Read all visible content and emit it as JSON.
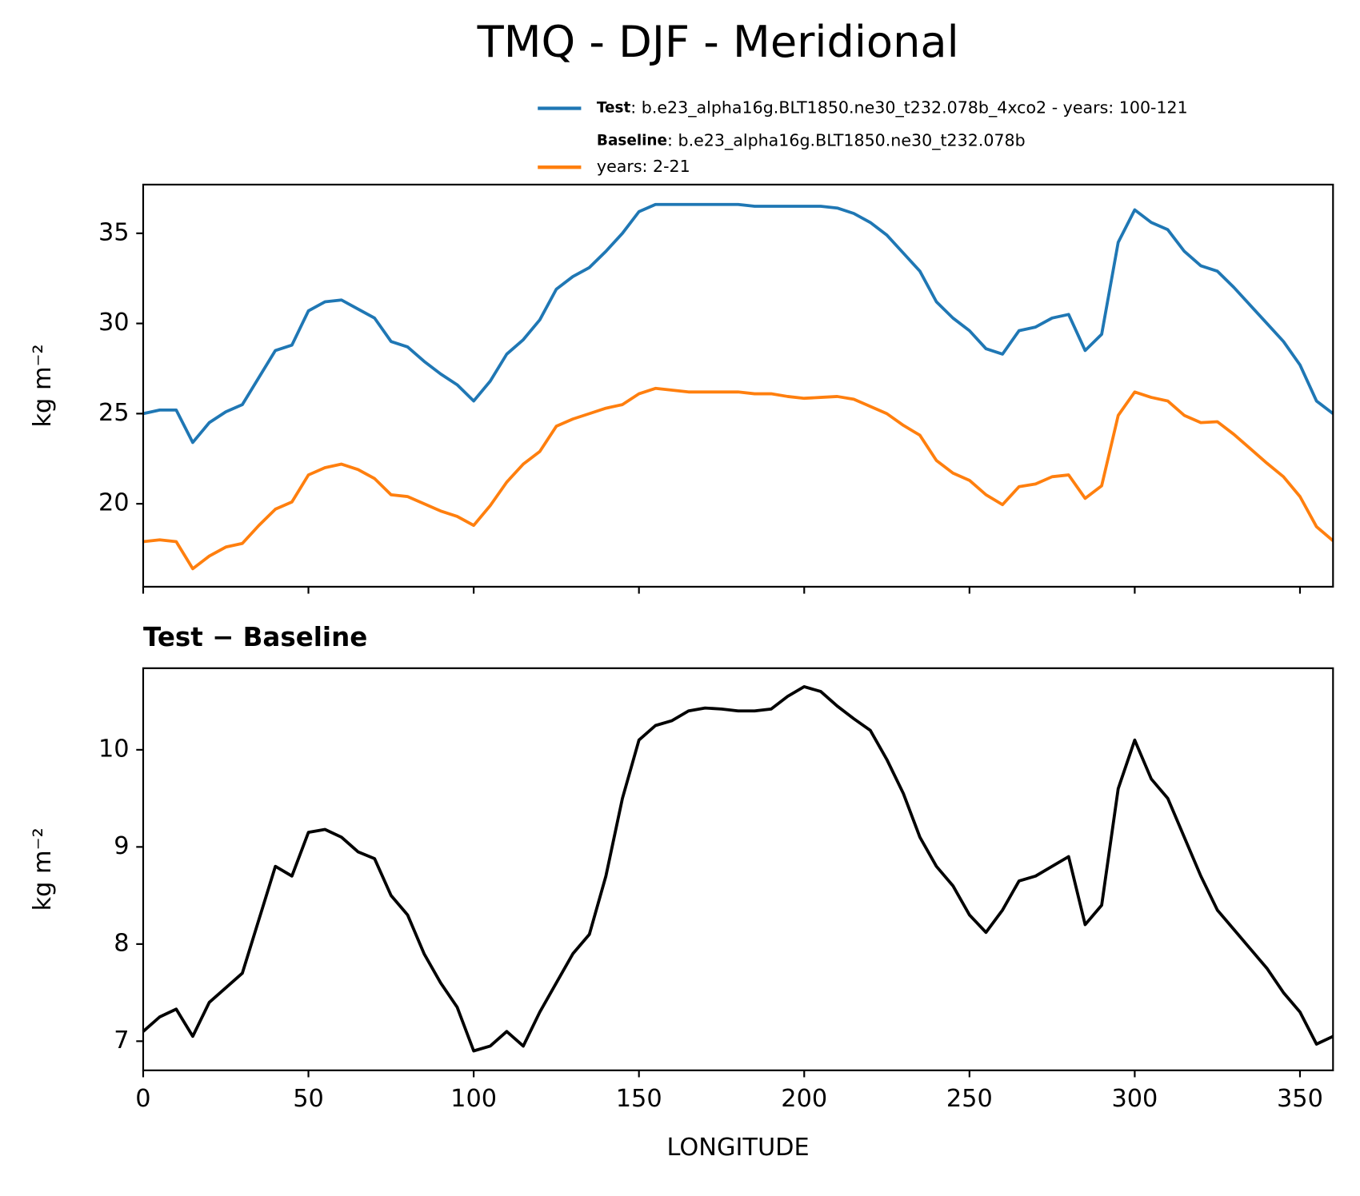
{
  "title": "TMQ - DJF - Meridional",
  "chart_data": [
    {
      "type": "line",
      "x": [
        0,
        5,
        10,
        15,
        20,
        25,
        30,
        35,
        40,
        45,
        50,
        55,
        60,
        65,
        70,
        75,
        80,
        85,
        90,
        95,
        100,
        105,
        110,
        115,
        120,
        125,
        130,
        135,
        140,
        145,
        150,
        155,
        160,
        165,
        170,
        175,
        180,
        185,
        190,
        195,
        200,
        205,
        210,
        215,
        220,
        225,
        230,
        235,
        240,
        245,
        250,
        255,
        260,
        265,
        270,
        275,
        280,
        285,
        290,
        295,
        300,
        305,
        310,
        315,
        320,
        325,
        330,
        335,
        340,
        345,
        350,
        355,
        360
      ],
      "series": [
        {
          "name": "Test",
          "description": [
            ": b.e23_alpha16g.BLT1850.ne30_t232.078b_4xco2 - years: 100-121"
          ],
          "color": "#1f77b4",
          "values": [
            25.0,
            25.2,
            25.2,
            23.4,
            24.5,
            25.1,
            25.5,
            27.0,
            28.5,
            28.8,
            30.7,
            31.2,
            31.3,
            30.8,
            30.3,
            29.0,
            28.7,
            27.9,
            27.2,
            26.6,
            25.7,
            26.8,
            28.3,
            29.1,
            30.2,
            31.9,
            32.6,
            33.1,
            34.0,
            35.0,
            36.2,
            36.6,
            36.6,
            36.6,
            36.6,
            36.6,
            36.6,
            36.5,
            36.5,
            36.5,
            36.5,
            36.5,
            36.4,
            36.1,
            35.6,
            34.9,
            33.9,
            32.9,
            31.2,
            30.3,
            29.6,
            28.6,
            28.3,
            29.6,
            29.8,
            30.3,
            30.5,
            28.5,
            29.4,
            34.5,
            36.3,
            35.6,
            35.2,
            34.0,
            33.2,
            32.9,
            32.0,
            31.0,
            30.0,
            29.0,
            27.7,
            25.7,
            25.0
          ]
        },
        {
          "name": "Baseline",
          "description": [
            ": b.e23_alpha16g.BLT1850.ne30_t232.078b",
            "years: 2-21"
          ],
          "color": "#ff7f0e",
          "values": [
            17.9,
            18.0,
            17.9,
            16.4,
            17.1,
            17.6,
            17.8,
            18.8,
            19.7,
            20.1,
            21.6,
            22.0,
            22.2,
            21.9,
            21.4,
            20.5,
            20.4,
            20.0,
            19.6,
            19.3,
            18.8,
            19.9,
            21.2,
            22.2,
            22.9,
            24.3,
            24.7,
            25.0,
            25.3,
            25.5,
            26.1,
            26.4,
            26.3,
            26.2,
            26.2,
            26.2,
            26.2,
            26.1,
            26.1,
            25.95,
            25.85,
            25.9,
            25.95,
            25.8,
            25.4,
            25.0,
            24.35,
            23.8,
            22.4,
            21.7,
            21.3,
            20.5,
            19.95,
            20.95,
            21.1,
            21.5,
            21.6,
            20.3,
            21.0,
            24.9,
            26.2,
            25.9,
            25.7,
            24.9,
            24.5,
            24.55,
            23.85,
            23.05,
            22.25,
            21.5,
            20.4,
            18.73,
            17.95
          ]
        }
      ],
      "ylabel": "kg m⁻²",
      "xlim": [
        0,
        360
      ],
      "xticks": [
        0,
        50,
        100,
        150,
        200,
        250,
        300,
        350
      ],
      "show_xtick_labels": false,
      "ylim": [
        15.4,
        37.7
      ],
      "yticks": [
        20,
        25,
        30,
        35
      ],
      "legend": "upper right outside"
    },
    {
      "type": "line",
      "subtitle": "Test − Baseline",
      "x": [
        0,
        5,
        10,
        15,
        20,
        25,
        30,
        35,
        40,
        45,
        50,
        55,
        60,
        65,
        70,
        75,
        80,
        85,
        90,
        95,
        100,
        105,
        110,
        115,
        120,
        125,
        130,
        135,
        140,
        145,
        150,
        155,
        160,
        165,
        170,
        175,
        180,
        185,
        190,
        195,
        200,
        205,
        210,
        215,
        220,
        225,
        230,
        235,
        240,
        245,
        250,
        255,
        260,
        265,
        270,
        275,
        280,
        285,
        290,
        295,
        300,
        305,
        310,
        315,
        320,
        325,
        330,
        335,
        340,
        345,
        350,
        355,
        360
      ],
      "series": [
        {
          "color": "#000000",
          "values": [
            7.1,
            7.25,
            7.33,
            7.05,
            7.4,
            7.55,
            7.7,
            8.25,
            8.8,
            8.7,
            9.15,
            9.18,
            9.1,
            8.95,
            8.88,
            8.5,
            8.3,
            7.9,
            7.6,
            7.35,
            6.9,
            6.95,
            7.1,
            6.95,
            7.3,
            7.6,
            7.9,
            8.1,
            8.7,
            9.5,
            10.1,
            10.25,
            10.3,
            10.4,
            10.43,
            10.42,
            10.4,
            10.4,
            10.42,
            10.55,
            10.65,
            10.6,
            10.45,
            10.32,
            10.2,
            9.9,
            9.55,
            9.1,
            8.8,
            8.6,
            8.3,
            8.12,
            8.35,
            8.65,
            8.7,
            8.8,
            8.9,
            8.2,
            8.4,
            9.6,
            10.1,
            9.7,
            9.5,
            9.1,
            8.7,
            8.35,
            8.15,
            7.95,
            7.75,
            7.5,
            7.3,
            6.97,
            7.05
          ]
        }
      ],
      "xlabel": "LONGITUDE",
      "ylabel": "kg m⁻²",
      "xlim": [
        0,
        360
      ],
      "xticks": [
        0,
        50,
        100,
        150,
        200,
        250,
        300,
        350
      ],
      "show_xtick_labels": true,
      "ylim": [
        6.7,
        10.84
      ],
      "yticks": [
        7,
        8,
        9,
        10
      ]
    }
  ]
}
